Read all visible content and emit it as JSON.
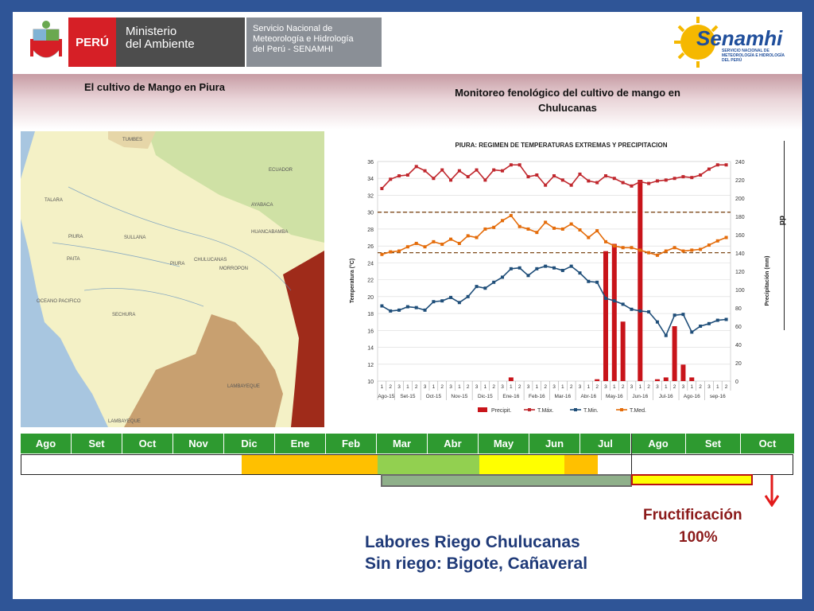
{
  "header": {
    "peru": "PERÚ",
    "ministerio_line1": "Ministerio",
    "ministerio_line2": "del Ambiente",
    "senamhi_line1": "Servicio Nacional de",
    "senamhi_line2": "Meteorología e Hidrología",
    "senamhi_line3": "del Perú - SENAMHI",
    "brand": "Senamhi",
    "brand_sub": "SERVICIO NACIONAL DE METEOROLOGÍA E HIDROLOGÍA DEL PERÚ"
  },
  "titles": {
    "left": "El cultivo de Mango en Piura",
    "right_line1": "Monitoreo fenológico del cultivo de mango en",
    "right_line2": "Chulucanas"
  },
  "map_labels": {
    "tumbes": "TUMBES",
    "ecuador": "ECUADOR",
    "oceano": "OCEANO PACIFICO",
    "piura_city": "PIURA",
    "lambayeque": "LAMBAYEQUE",
    "lambayeque2": "LAMBAYEQUE",
    "chulucanas": "CHULUCANAS",
    "talara": "TALARA",
    "sullana": "SULLANA",
    "paita": "PAITA",
    "sechura": "SECHURA",
    "ayabaca": "AYABACA",
    "huancabamba": "HUANCABAMBA",
    "morropon": "MORROPON"
  },
  "chart_data": {
    "type": "line",
    "title": "PIURA: REGIMEN DE TEMPERATURAS EXTREMAS Y PRECIPITACION",
    "ylabel": "Temperatura (°C)",
    "y2label": "Precipitación (mm)",
    "ylim": [
      10,
      36
    ],
    "y2lim": [
      0,
      240
    ],
    "yticks": [
      10,
      12,
      14,
      16,
      18,
      20,
      22,
      24,
      26,
      28,
      30,
      32,
      34,
      36
    ],
    "y2ticks": [
      0,
      20,
      40,
      60,
      80,
      100,
      120,
      140,
      160,
      180,
      200,
      220,
      240
    ],
    "decades": [
      "1",
      "2",
      "3"
    ],
    "months": [
      "Ago-15",
      "Set-15",
      "Oct-15",
      "Nov-15",
      "Dic-15",
      "Ene-16",
      "Feb-16",
      "Mar-16",
      "Abr-16",
      "May-16",
      "Jun-16",
      "Jul-16",
      "Ago-16",
      "sep-16"
    ],
    "reference_lines": [
      30,
      25.2
    ],
    "series": [
      {
        "name": "T.Máx.",
        "color": "#c0272d",
        "values": [
          32.8,
          33.9,
          34.3,
          34.4,
          35.4,
          34.9,
          34.0,
          35.0,
          33.8,
          34.9,
          34.2,
          35.0,
          33.8,
          35.0,
          34.9,
          35.6,
          35.6,
          34.2,
          34.4,
          33.2,
          34.3,
          33.8,
          33.2,
          34.5,
          33.7,
          33.5,
          34.3,
          34.0,
          33.5,
          33.1,
          33.6,
          33.4,
          33.7,
          33.8,
          34.0,
          34.2,
          34.1,
          34.4,
          35.1,
          35.6,
          35.6
        ]
      },
      {
        "name": "T.Min.",
        "color": "#1f4e79",
        "values": [
          18.9,
          18.3,
          18.4,
          18.8,
          18.7,
          18.4,
          19.4,
          19.5,
          19.9,
          19.3,
          20.0,
          21.2,
          21.0,
          21.7,
          22.3,
          23.3,
          23.4,
          22.5,
          23.3,
          23.6,
          23.4,
          23.1,
          23.6,
          22.8,
          21.8,
          21.7,
          19.8,
          19.5,
          19.1,
          18.5,
          18.3,
          18.2,
          17.0,
          15.4,
          17.8,
          17.9,
          15.8,
          16.5,
          16.8,
          17.2,
          17.3
        ]
      },
      {
        "name": "T.Med.",
        "color": "#e46c0a",
        "values": [
          25.0,
          25.3,
          25.4,
          25.9,
          26.3,
          25.9,
          26.5,
          26.2,
          26.8,
          26.3,
          27.2,
          27.0,
          28.0,
          28.2,
          29.0,
          29.6,
          28.3,
          28.0,
          27.6,
          28.8,
          28.1,
          28.0,
          28.6,
          27.9,
          27.0,
          27.8,
          26.5,
          26.0,
          25.8,
          25.8,
          25.5,
          25.2,
          24.9,
          25.4,
          25.8,
          25.4,
          25.5,
          25.6,
          26.1,
          26.6,
          27.0
        ]
      }
    ],
    "precip": {
      "name": "Precipit.",
      "color": "#c8141a",
      "values": [
        0,
        0,
        0,
        0,
        0,
        0,
        0,
        0,
        0,
        0,
        0,
        0,
        0,
        0,
        0,
        4,
        0,
        0,
        0,
        0,
        0,
        0,
        0,
        0,
        0,
        2,
        142,
        150,
        65,
        0,
        220,
        0,
        2,
        4,
        60,
        18,
        4,
        0,
        0,
        0,
        0
      ]
    },
    "legend": [
      "Precipit.",
      "T.Máx.",
      "T.Min.",
      "T.Med."
    ]
  },
  "calendar": {
    "months": [
      "Ago",
      "Set",
      "Oct",
      "Nov",
      "Dic",
      "Ene",
      "Feb",
      "Mar",
      "Abr",
      "May",
      "Jun",
      "Jul",
      "Ago",
      "Set",
      "Oct"
    ]
  },
  "rightside_label": "dd",
  "fruct_line1": "Fructificación",
  "fruct_line2": "100%",
  "labores_line1": "Labores Riego Chulucanas",
  "labores_line2": "Sin riego: Bigote, Cañaveral"
}
